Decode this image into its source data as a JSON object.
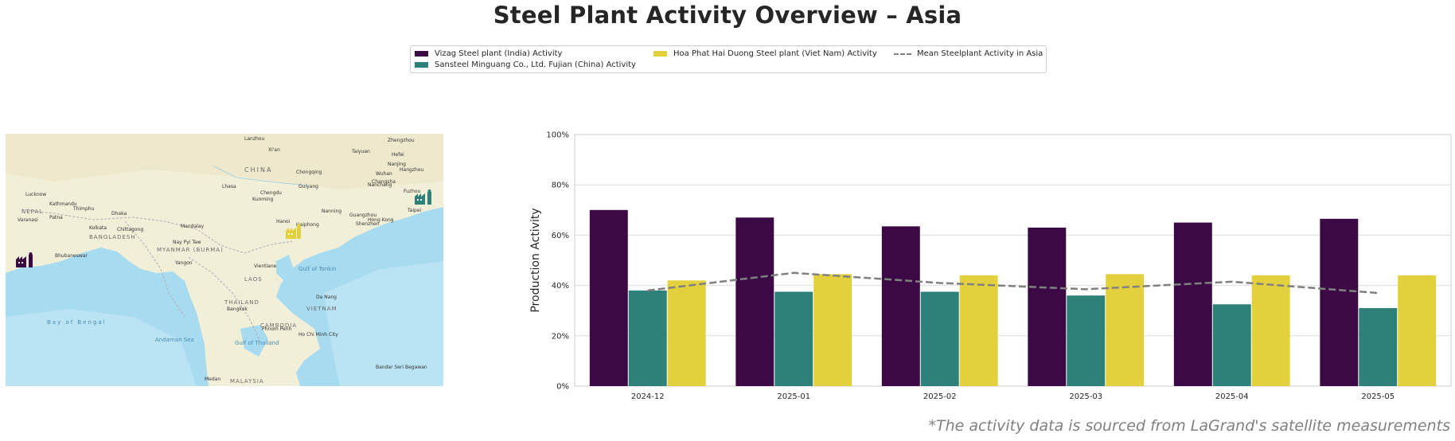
{
  "title": "Steel Plant Activity Overview – Asia",
  "footnote": "*The activity data is sourced from LaGrand's satellite measurements",
  "legend": {
    "items": [
      {
        "label": "Vizag Steel plant (India) Activity",
        "color": "#3b0a45",
        "kind": "bar"
      },
      {
        "label": "Sansteel Minguang Co., Ltd. Fujian (China) Activity",
        "color": "#2e8179",
        "kind": "bar"
      },
      {
        "label": "Hoa Phat Hai Duong Steel plant (Viet Nam) Activity",
        "color": "#e2d13c",
        "kind": "bar"
      },
      {
        "label": "Mean Steelplant Activity in Asia",
        "color": "#808080",
        "kind": "dashed-line"
      }
    ]
  },
  "map": {
    "labels": {
      "china": "CHINA",
      "bangladesh": "BANGLADESH",
      "myanmar": "MYANMAR (BURMA)",
      "thailand": "THAILAND",
      "laos": "LAOS",
      "cambodia": "CAMBODIA",
      "vietnam": "VIETNAM",
      "malaysia": "MALAYSIA",
      "nepal": "NEPAL",
      "bay_of_bengal": "Bay of Bengal",
      "andaman_sea": "Andaman Sea",
      "gulf_of_thailand": "Gulf of Thailand",
      "gulf_of_tonkin": "Gulf of Tonkin",
      "cities": [
        "Lanzhou",
        "Xi'an",
        "Zhengzhou",
        "Taiyuan",
        "Hefei",
        "Nanjing",
        "Wuhan",
        "Changsha",
        "Nanchang",
        "Hangzhou",
        "Chengdu",
        "Chongqing",
        "Guiyang",
        "Kunming",
        "Nanning",
        "Guangzhou",
        "Shenzhen",
        "Hong Kong",
        "Fuzhou",
        "Taipei",
        "Lhasa",
        "Kathmandu",
        "Thimphu",
        "Patna",
        "Dhaka",
        "Kolkata",
        "Chittagong",
        "Mandalay",
        "Nay Pyi Taw",
        "Yangon",
        "Hanoi",
        "Haiphong",
        "Vientiane",
        "Bangkok",
        "Phnom Penh",
        "Ho Chi Minh City",
        "Da Nang",
        "Medan",
        "Bandar Seri Begawan",
        "Varanasi",
        "Bhubaneswar",
        "Lucknow"
      ]
    },
    "markers": [
      {
        "name": "Vizag",
        "color": "#3b0a45"
      },
      {
        "name": "Hoa Phat Hai Duong",
        "color": "#e2d13c"
      },
      {
        "name": "Sansteel Minguang",
        "color": "#2e8179"
      }
    ]
  },
  "chart_data": {
    "type": "bar",
    "categories": [
      "2024-12",
      "2025-01",
      "2025-02",
      "2025-03",
      "2025-04",
      "2025-05"
    ],
    "series": [
      {
        "name": "Vizag Steel plant (India) Activity",
        "color": "#3b0a45",
        "values": [
          70,
          67,
          63.5,
          63,
          65,
          66.5
        ]
      },
      {
        "name": "Sansteel Minguang Co., Ltd. Fujian (China) Activity",
        "color": "#2e8179",
        "values": [
          38,
          37.5,
          37.5,
          36,
          32.5,
          31
        ]
      },
      {
        "name": "Hoa Phat Hai Duong Steel plant (Viet Nam) Activity",
        "color": "#e2d13c",
        "values": [
          42,
          44.5,
          44,
          44.5,
          44,
          44
        ]
      }
    ],
    "line_series": {
      "name": "Mean Steelplant Activity in Asia",
      "color": "#808080",
      "values": [
        38,
        45,
        41,
        38.5,
        41.5,
        37
      ]
    },
    "ylabel": "Production Activity",
    "xlabel": "",
    "ylim": [
      0,
      100
    ],
    "yticks": [
      "0%",
      "20%",
      "40%",
      "60%",
      "80%",
      "100%"
    ],
    "ytick_values": [
      0,
      20,
      40,
      60,
      80,
      100
    ],
    "grid": "horizontal",
    "legend_position": "top-center"
  }
}
